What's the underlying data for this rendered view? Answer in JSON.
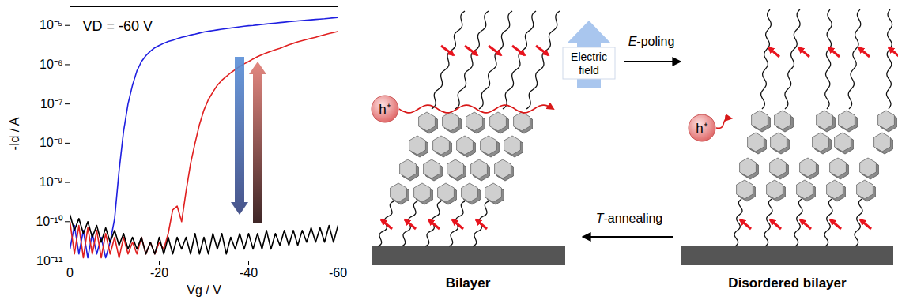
{
  "chart_data": {
    "type": "line",
    "x_label": "Vg / V",
    "y_label": "-Id / A",
    "annotation": "VD = -60 V",
    "log": "y",
    "grid": false,
    "xlim": [
      0,
      -60
    ],
    "xticks": [
      0,
      -20,
      -40,
      -60
    ],
    "ylim": [
      1e-11,
      3e-05
    ],
    "yticks": [
      {
        "value": 1e-11,
        "label": "10⁻¹¹"
      },
      {
        "value": 1e-10,
        "label": "10⁻¹⁰"
      },
      {
        "value": 1e-09,
        "label": "10⁻⁹"
      },
      {
        "value": 1e-08,
        "label": "10⁻⁸"
      },
      {
        "value": 1e-07,
        "label": "10⁻⁷"
      },
      {
        "value": 1e-06,
        "label": "10⁻⁶"
      },
      {
        "value": 1e-05,
        "label": "10⁻⁵"
      }
    ],
    "x": [
      0,
      -1,
      -2,
      -3,
      -4,
      -5,
      -6,
      -7,
      -8,
      -9,
      -10,
      -11,
      -12,
      -13,
      -14,
      -15,
      -16,
      -17,
      -18,
      -19,
      -20,
      -21,
      -22,
      -23,
      -24,
      -25,
      -26,
      -27,
      -28,
      -29,
      -30,
      -31,
      -32,
      -33,
      -34,
      -35,
      -36,
      -37,
      -38,
      -39,
      -40,
      -41,
      -42,
      -43,
      -44,
      -45,
      -46,
      -47,
      -48,
      -49,
      -50,
      -51,
      -52,
      -53,
      -54,
      -55,
      -56,
      -57,
      -58,
      -59,
      -60
    ],
    "series": [
      {
        "color": "#1f1fe0",
        "values": [
          2e-11,
          8e-11,
          1.5e-11,
          6e-11,
          1.2e-11,
          5e-11,
          1.5e-11,
          4e-11,
          1.2e-11,
          3e-11,
          1.2e-10,
          2e-09,
          2e-08,
          1e-07,
          3e-07,
          7e-07,
          1.2e-06,
          1.7e-06,
          2.2e-06,
          2.7e-06,
          3.1e-06,
          3.5e-06,
          3.9e-06,
          4.2e-06,
          4.6e-06,
          5e-06,
          5.3e-06,
          5.7e-06,
          6e-06,
          6.4e-06,
          6.8e-06,
          7.1e-06,
          7.4e-06,
          7.7e-06,
          8e-06,
          8.3e-06,
          8.6e-06,
          8.9e-06,
          9.2e-06,
          9.5e-06,
          9.8e-06,
          1e-05,
          1.03e-05,
          1.06e-05,
          1.09e-05,
          1.12e-05,
          1.15e-05,
          1.18e-05,
          1.21e-05,
          1.24e-05,
          1.27e-05,
          1.3e-05,
          1.33e-05,
          1.36e-05,
          1.39e-05,
          1.42e-05,
          1.45e-05,
          1.48e-05,
          1.52e-05,
          1.56e-05,
          1.6e-05
        ]
      },
      {
        "color": "#e02020",
        "values": [
          1e-10,
          1.5e-11,
          8e-11,
          1.2e-11,
          7e-11,
          1.5e-11,
          6e-11,
          1.2e-11,
          5e-11,
          1.5e-11,
          4e-11,
          1.2e-11,
          4e-11,
          1.5e-11,
          3e-11,
          1.5e-11,
          4e-11,
          1.5e-11,
          3e-11,
          1.5e-11,
          3e-11,
          2e-11,
          5e-11,
          2e-10,
          2.5e-10,
          1e-10,
          6e-10,
          3e-09,
          1e-08,
          3e-08,
          7e-08,
          1.3e-07,
          2e-07,
          3e-07,
          4e-07,
          5e-07,
          6.2e-07,
          7.5e-07,
          9e-07,
          1.05e-06,
          1.2e-06,
          1.4e-06,
          1.6e-06,
          1.8e-06,
          2e-06,
          2.2e-06,
          2.4e-06,
          2.6e-06,
          2.9e-06,
          3.2e-06,
          3.5e-06,
          3.8e-06,
          4.1e-06,
          4.4e-06,
          4.7e-06,
          5e-06,
          5.4e-06,
          5.8e-06,
          6.2e-06,
          6.6e-06,
          7e-06
        ]
      },
      {
        "color": "#000000",
        "values": [
          1.5e-10,
          6e-11,
          1.2e-10,
          5e-11,
          1e-10,
          4e-11,
          8e-11,
          3e-11,
          7e-11,
          3e-11,
          6e-11,
          2.5e-11,
          5e-11,
          2e-11,
          4e-11,
          2e-11,
          4e-11,
          1.5e-11,
          3e-11,
          1.5e-11,
          4e-11,
          1.5e-11,
          4e-11,
          1.5e-11,
          4e-11,
          2e-11,
          4e-11,
          1.5e-11,
          5e-11,
          1.5e-11,
          4e-11,
          1.5e-11,
          5e-11,
          2e-11,
          5e-11,
          1.5e-11,
          4e-11,
          2e-11,
          5e-11,
          2e-11,
          5e-11,
          2e-11,
          5e-11,
          2e-11,
          6e-11,
          2e-11,
          5e-11,
          2.5e-11,
          6e-11,
          2.5e-11,
          6e-11,
          2.5e-11,
          6e-11,
          3e-11,
          7e-11,
          3e-11,
          7e-11,
          3e-11,
          8e-11,
          3e-11,
          8e-11
        ]
      }
    ]
  },
  "diagram": {
    "panels": [
      {
        "label": "Bilayer"
      },
      {
        "label": "Disordered bilayer"
      }
    ],
    "field_label": "Electric field",
    "forward_label": "E-poling",
    "backward_label": "T-annealing",
    "carrier_label": "h⁺"
  }
}
